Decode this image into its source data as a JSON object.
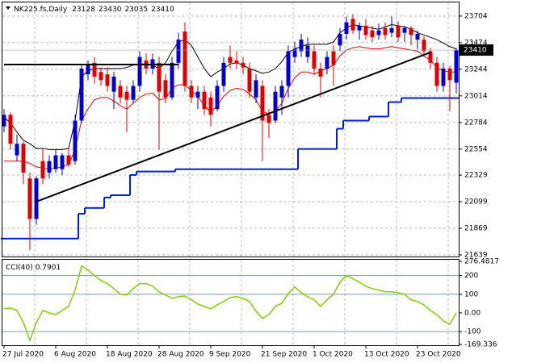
{
  "chart_data": [
    {
      "type": "candlestick",
      "title": "NK225.fs,Daily",
      "categories": [
        "27 Jul 2020",
        null,
        null,
        null,
        null,
        null,
        null,
        null,
        "6 Aug 2020",
        null,
        null,
        null,
        null,
        null,
        null,
        null,
        "18 Aug 2020",
        null,
        null,
        null,
        null,
        null,
        null,
        null,
        "28 Aug 2020",
        null,
        null,
        null,
        null,
        null,
        null,
        null,
        "9 Sep 2020",
        null,
        null,
        null,
        null,
        null,
        null,
        null,
        "21 Sep 2020",
        null,
        null,
        null,
        null,
        null,
        null,
        null,
        "1 Oct 2020",
        null,
        null,
        null,
        null,
        null,
        null,
        null,
        "13 Oct 2020",
        null,
        null,
        null,
        null,
        null,
        null,
        null,
        "23 Oct 2020",
        null,
        null,
        null,
        null,
        null,
        null
      ],
      "open": [
        22750,
        22850,
        22500,
        22600,
        22300,
        21950,
        22450,
        22350,
        22380,
        22380,
        22500,
        22450,
        22800,
        23200,
        23300,
        23220,
        23200,
        23050,
        23100,
        23050,
        22980,
        23100,
        23320,
        23250,
        23300,
        23150,
        23000,
        23300,
        23570,
        23100,
        23000,
        23050,
        23000,
        22900,
        23100,
        23350,
        23320,
        23300,
        23250,
        23000,
        23100,
        22850,
        22800,
        23000,
        23100,
        23350,
        23400,
        23350,
        23400,
        23250,
        23250,
        23400,
        23450,
        23550,
        23680,
        23580,
        23620,
        23580,
        23540,
        23600,
        23560,
        23620,
        23560,
        23600,
        23500,
        23500,
        23400,
        23300,
        23100,
        23250,
        23128
      ],
      "high": [
        22900,
        22870,
        22680,
        22620,
        22350,
        22320,
        22550,
        22500,
        22550,
        22520,
        22560,
        22850,
        23280,
        23320,
        23350,
        23260,
        23260,
        23220,
        23150,
        23100,
        23150,
        23400,
        23380,
        23380,
        23350,
        23200,
        23350,
        23560,
        23650,
        23150,
        23100,
        23100,
        23050,
        23150,
        23350,
        23450,
        23400,
        23350,
        23300,
        23200,
        23150,
        22900,
        23100,
        23150,
        23450,
        23480,
        23550,
        23520,
        23450,
        23300,
        23400,
        23450,
        23600,
        23700,
        23720,
        23650,
        23680,
        23620,
        23640,
        23650,
        23700,
        23660,
        23620,
        23620,
        23580,
        23530,
        23430,
        23350,
        23300,
        23270,
        23430
      ],
      "low": [
        22700,
        22550,
        22450,
        22250,
        21680,
        21900,
        22250,
        22300,
        22350,
        22330,
        22400,
        22420,
        22780,
        23150,
        23120,
        23100,
        23050,
        22900,
        22950,
        22700,
        22950,
        23050,
        23200,
        23200,
        22550,
        22950,
        22980,
        23250,
        23050,
        22950,
        22900,
        22850,
        22750,
        22880,
        23050,
        23250,
        23250,
        23200,
        23000,
        22950,
        22450,
        22650,
        22780,
        22850,
        23000,
        23300,
        23350,
        23300,
        23200,
        23000,
        23200,
        23100,
        23400,
        23500,
        23550,
        23500,
        23500,
        23480,
        23500,
        23500,
        23520,
        23480,
        23480,
        23450,
        23420,
        23350,
        23250,
        23050,
        23050,
        22880,
        23035
      ],
      "close": [
        22850,
        22600,
        22600,
        22350,
        21950,
        22300,
        22300,
        22450,
        22500,
        22500,
        22420,
        22800,
        23250,
        23280,
        23180,
        23150,
        23100,
        23180,
        23000,
        22980,
        23100,
        23350,
        23250,
        23330,
        23050,
        23000,
        23300,
        23500,
        23100,
        23000,
        23050,
        22900,
        22850,
        23100,
        23300,
        23300,
        23300,
        23260,
        23050,
        23150,
        22800,
        22780,
        23050,
        23100,
        23400,
        23420,
        23500,
        23450,
        23250,
        23180,
        23350,
        23280,
        23550,
        23650,
        23580,
        23620,
        23540,
        23520,
        23580,
        23540,
        23600,
        23520,
        23600,
        23540,
        23550,
        23400,
        23300,
        23100,
        23250,
        23150,
        23410
      ],
      "up_color": "#0000d0",
      "down_color": "#e00000",
      "series": [
        {
          "color": "#000000",
          "values": [
            22830,
            22780,
            22700,
            22630,
            22600,
            22560,
            22560,
            22550,
            22550,
            22550,
            22560,
            22800,
            23180,
            23230,
            23250,
            23250,
            23250,
            23250,
            23250,
            23260,
            23280,
            23290,
            23290,
            23280,
            23250,
            23300,
            23400,
            23480,
            23500,
            23450,
            23350,
            23250,
            23180,
            23220,
            23250,
            23290,
            23300,
            23280,
            23250,
            23230,
            23210,
            23220,
            23250,
            23310,
            23390,
            23420,
            23440,
            23460,
            23460,
            23460,
            23460,
            23480,
            23560,
            23600,
            23630,
            23620,
            23610,
            23600,
            23590,
            23610,
            23630,
            23620,
            23610,
            23590,
            23560,
            23540,
            23520,
            23500,
            23470,
            23440,
            23420
          ]
        },
        {
          "color": "#e00000",
          "values": [
            22450,
            22450,
            22450,
            22450,
            22430,
            22400,
            22390,
            22380,
            22390,
            22400,
            22420,
            22550,
            22800,
            22900,
            22980,
            23000,
            23000,
            22970,
            22930,
            22900,
            22950,
            23000,
            23030,
            23040,
            22980,
            22990,
            23080,
            23110,
            23110,
            23060,
            23010,
            22930,
            22870,
            22930,
            23010,
            23060,
            23080,
            23070,
            23030,
            22980,
            22880,
            22860,
            22880,
            22950,
            23080,
            23170,
            23220,
            23220,
            23200,
            23230,
            23250,
            23280,
            23360,
            23410,
            23430,
            23440,
            23430,
            23420,
            23420,
            23430,
            23440,
            23430,
            23420,
            23410,
            23400,
            23360,
            23320,
            23260,
            23230,
            23220,
            23220
          ]
        },
        {
          "color": "#0020d0",
          "step": true,
          "values": [
            21780,
            21780,
            21780,
            21780,
            21780,
            21780,
            21780,
            21780,
            21780,
            21780,
            21780,
            21780,
            21995,
            22045,
            22045,
            22045,
            22135,
            22155,
            22155,
            22155,
            22330,
            22360,
            22360,
            22360,
            22360,
            22360,
            22360,
            22380,
            22380,
            22380,
            22380,
            22380,
            22380,
            22380,
            22380,
            22380,
            22380,
            22380,
            22380,
            22380,
            22380,
            22380,
            22380,
            22380,
            22380,
            22380,
            22555,
            22555,
            22555,
            22555,
            22555,
            22555,
            22730,
            22800,
            22800,
            22800,
            22800,
            22835,
            22835,
            22835,
            22960,
            22960,
            22995,
            22995,
            22995,
            22995,
            22995,
            22995,
            22995,
            22995,
            22995
          ]
        }
      ],
      "trendlines": [
        {
          "color": "#000000",
          "x": [
            0,
            27
          ],
          "values": [
            23285,
            23285
          ]
        },
        {
          "color": "#000000",
          "x": [
            5,
            66
          ],
          "values": [
            22100,
            23390
          ]
        }
      ],
      "ylim": [
        21625,
        23808
      ],
      "yticks": [
        21639,
        21869,
        22099,
        22329,
        22554,
        22784,
        23014,
        23244,
        23474,
        23704
      ],
      "grid": true
    },
    {
      "type": "line",
      "title": "CCI(40)",
      "series": [
        {
          "color": "#80d000",
          "values": [
            22,
            26,
            13,
            -52,
            -148,
            -52,
            13,
            0,
            -9,
            13,
            35,
            122,
            252,
            230,
            200,
            174,
            157,
            130,
            100,
            96,
            130,
            157,
            157,
            143,
            113,
            96,
            78,
            87,
            91,
            70,
            48,
            35,
            22,
            43,
            61,
            83,
            87,
            78,
            61,
            9,
            -30,
            -9,
            35,
            52,
            104,
            139,
            109,
            87,
            70,
            35,
            70,
            100,
            165,
            200,
            183,
            165,
            143,
            130,
            122,
            113,
            113,
            109,
            100,
            70,
            61,
            43,
            13,
            -9,
            -43,
            -61,
            0.7901
          ]
        }
      ],
      "levels": [
        200,
        100,
        -100
      ],
      "ylim": [
        -169.336,
        276.4817
      ],
      "yticks": [
        276.4817,
        200,
        100,
        {
          "value": 0,
          "label": "0.00"
        },
        -100,
        -169.336
      ]
    }
  ]
}
